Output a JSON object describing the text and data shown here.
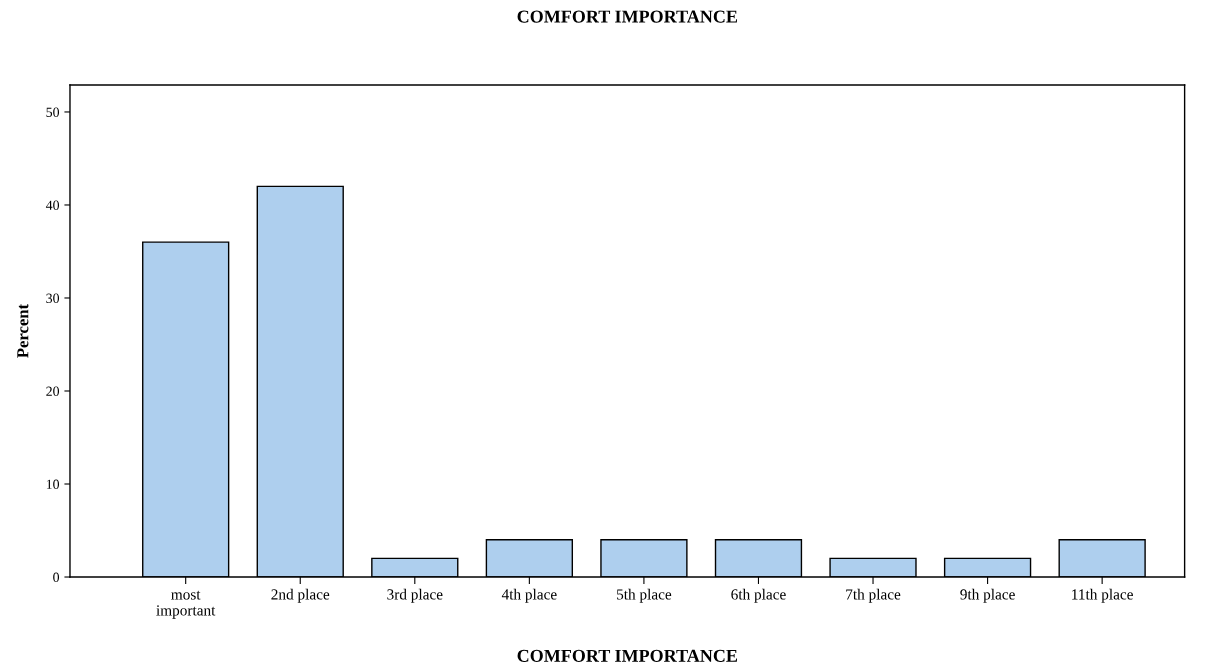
{
  "chart_data": {
    "type": "bar",
    "title": "COMFORT IMPORTANCE",
    "xlabel": "COMFORT IMPORTANCE",
    "ylabel": "Percent",
    "categories": [
      "most\nimportant",
      "2nd place",
      "3rd place",
      "4th place",
      "5th place",
      "6th place",
      "7th place",
      "9th place",
      "11th place"
    ],
    "values": [
      36,
      42,
      2,
      4,
      4,
      4,
      2,
      2,
      4
    ],
    "color": "#aecfee",
    "ylim": [
      0,
      52.9
    ],
    "yticks": [
      0,
      10,
      20,
      30,
      40,
      50
    ],
    "grid": false,
    "legend": false
  }
}
